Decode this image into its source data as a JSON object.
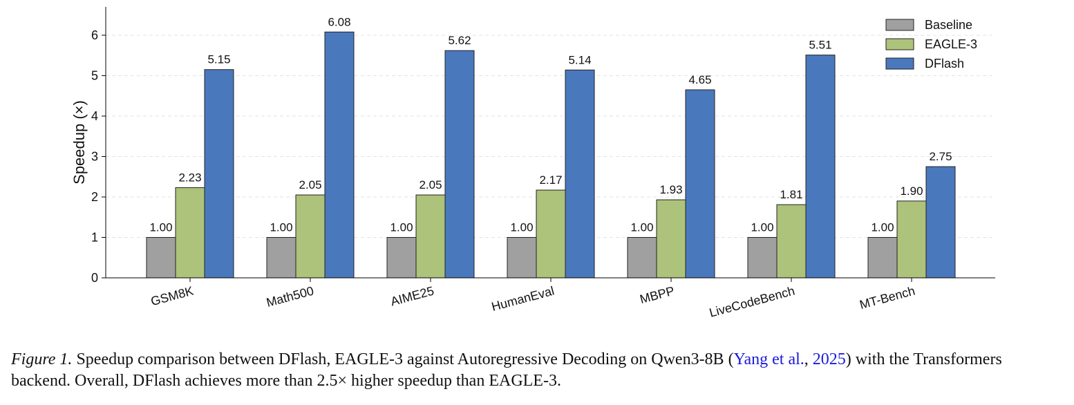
{
  "chart_data": {
    "type": "bar",
    "categories": [
      "GSM8K",
      "Math500",
      "AIME25",
      "HumanEval",
      "MBPP",
      "LiveCodeBench",
      "MT-Bench"
    ],
    "series": [
      {
        "name": "Baseline",
        "color": "#a0a0a0",
        "values": [
          1,
          1,
          1,
          1,
          1,
          1,
          1
        ],
        "value_labels": [
          "1.00",
          "1.00",
          "1.00",
          "1.00",
          "1.00",
          "1.00",
          "1.00"
        ]
      },
      {
        "name": "EAGLE-3",
        "color": "#adc27a",
        "values": [
          2.23,
          2.05,
          2.05,
          2.17,
          1.93,
          1.81,
          1.9
        ],
        "value_labels": [
          "2.23",
          "2.05",
          "2.05",
          "2.17",
          "1.93",
          "1.81",
          "1.90"
        ]
      },
      {
        "name": "DFlash",
        "color": "#4a78bd",
        "values": [
          5.15,
          6.08,
          5.62,
          5.14,
          4.65,
          5.51,
          2.75
        ],
        "value_labels": [
          "5.15",
          "6.08",
          "5.62",
          "5.14",
          "4.65",
          "5.51",
          "2.75"
        ]
      }
    ],
    "y_label": "Speedup (×)",
    "ylim": [
      0,
      6.7
    ],
    "yticks": [
      0,
      1,
      2,
      3,
      4,
      5,
      6
    ],
    "grid": true,
    "legend": "upper-right"
  },
  "caption": {
    "label": "Figure 1.",
    "text_before": " Speedup comparison between DFlash, EAGLE-3 against Autoregressive Decoding on Qwen3-8B (",
    "cite_author": "Yang et al.",
    "cite_sep": ", ",
    "cite_year": "2025",
    "text_after": ") with the Transformers backend. Overall, DFlash achieves more than 2.5× higher speedup than EAGLE-3."
  }
}
